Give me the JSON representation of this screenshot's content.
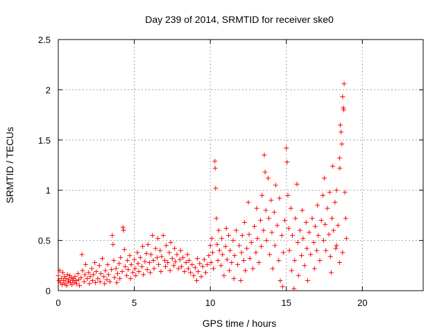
{
  "chart_data": {
    "type": "scatter",
    "title": "Day 239 of 2014, SRMTID for receiver ske0",
    "xlabel": "GPS time / hours",
    "ylabel": "SRMTID / TECUs",
    "xlim": [
      0,
      24
    ],
    "ylim": [
      0,
      2.5
    ],
    "grid": true,
    "marker": "+",
    "marker_color": "#ff0000",
    "x_ticks": [
      0,
      5,
      10,
      15,
      20
    ],
    "x_tick_labels": [
      "0",
      "5",
      "10",
      "15",
      "20"
    ],
    "y_ticks": [
      0,
      0.5,
      1,
      1.5,
      2,
      2.5
    ],
    "y_tick_labels": [
      "0",
      "0.5",
      "1",
      "1.5",
      "2",
      "2.5"
    ],
    "series": [
      {
        "name": "SRMTID",
        "points": [
          [
            0.0,
            0.15
          ],
          [
            0.05,
            0.1
          ],
          [
            0.1,
            0.2
          ],
          [
            0.15,
            0.08
          ],
          [
            0.2,
            0.12
          ],
          [
            0.25,
            0.06
          ],
          [
            0.3,
            0.18
          ],
          [
            0.35,
            0.1
          ],
          [
            0.4,
            0.14
          ],
          [
            0.45,
            0.07
          ],
          [
            0.5,
            0.12
          ],
          [
            0.55,
            0.05
          ],
          [
            0.6,
            0.16
          ],
          [
            0.65,
            0.09
          ],
          [
            0.7,
            0.11
          ],
          [
            0.75,
            0.15
          ],
          [
            0.8,
            0.08
          ],
          [
            0.85,
            0.13
          ],
          [
            0.9,
            0.06
          ],
          [
            0.95,
            0.1
          ],
          [
            1.0,
            0.12
          ],
          [
            1.05,
            0.08
          ],
          [
            1.1,
            0.14
          ],
          [
            1.15,
            0.1
          ],
          [
            1.2,
            0.07
          ],
          [
            1.3,
            0.17
          ],
          [
            1.35,
            0.11
          ],
          [
            1.4,
            0.05
          ],
          [
            1.5,
            0.13
          ],
          [
            1.55,
            0.36
          ],
          [
            1.6,
            0.2
          ],
          [
            1.7,
            0.09
          ],
          [
            1.75,
            0.16
          ],
          [
            1.8,
            0.26
          ],
          [
            1.9,
            0.12
          ],
          [
            2.0,
            0.18
          ],
          [
            2.05,
            0.07
          ],
          [
            2.1,
            0.14
          ],
          [
            2.2,
            0.22
          ],
          [
            2.25,
            0.1
          ],
          [
            2.3,
            0.16
          ],
          [
            2.4,
            0.28
          ],
          [
            2.45,
            0.08
          ],
          [
            2.5,
            0.19
          ],
          [
            2.6,
            0.12
          ],
          [
            2.7,
            0.25
          ],
          [
            2.75,
            0.09
          ],
          [
            2.8,
            0.17
          ],
          [
            2.9,
            0.32
          ],
          [
            3.0,
            0.14
          ],
          [
            3.05,
            0.07
          ],
          [
            3.1,
            0.2
          ],
          [
            3.2,
            0.11
          ],
          [
            3.25,
            0.26
          ],
          [
            3.3,
            0.16
          ],
          [
            3.4,
            0.09
          ],
          [
            3.5,
            0.21
          ],
          [
            3.55,
            0.55
          ],
          [
            3.6,
            0.46
          ],
          [
            3.65,
            0.3
          ],
          [
            3.7,
            0.13
          ],
          [
            3.8,
            0.22
          ],
          [
            3.85,
            0.08
          ],
          [
            3.9,
            0.17
          ],
          [
            4.0,
            0.27
          ],
          [
            4.05,
            0.12
          ],
          [
            4.1,
            0.33
          ],
          [
            4.2,
            0.19
          ],
          [
            4.25,
            0.63
          ],
          [
            4.3,
            0.6
          ],
          [
            4.35,
            0.41
          ],
          [
            4.4,
            0.24
          ],
          [
            4.5,
            0.15
          ],
          [
            4.55,
            0.3
          ],
          [
            4.6,
            0.21
          ],
          [
            4.7,
            0.35
          ],
          [
            4.75,
            0.12
          ],
          [
            4.8,
            0.26
          ],
          [
            4.9,
            0.18
          ],
          [
            5.0,
            0.31
          ],
          [
            5.05,
            0.22
          ],
          [
            5.1,
            0.15
          ],
          [
            5.2,
            0.38
          ],
          [
            5.25,
            0.27
          ],
          [
            5.3,
            0.19
          ],
          [
            5.4,
            0.33
          ],
          [
            5.5,
            0.24
          ],
          [
            5.55,
            0.44
          ],
          [
            5.6,
            0.16
          ],
          [
            5.7,
            0.29
          ],
          [
            5.8,
            0.37
          ],
          [
            5.85,
            0.21
          ],
          [
            5.9,
            0.46
          ],
          [
            6.0,
            0.28
          ],
          [
            6.05,
            0.18
          ],
          [
            6.1,
            0.36
          ],
          [
            6.2,
            0.55
          ],
          [
            6.25,
            0.3
          ],
          [
            6.3,
            0.22
          ],
          [
            6.4,
            0.42
          ],
          [
            6.5,
            0.33
          ],
          [
            6.55,
            0.52
          ],
          [
            6.6,
            0.26
          ],
          [
            6.7,
            0.4
          ],
          [
            6.75,
            0.19
          ],
          [
            6.8,
            0.34
          ],
          [
            6.9,
            0.55
          ],
          [
            7.0,
            0.3
          ],
          [
            7.05,
            0.24
          ],
          [
            7.1,
            0.45
          ],
          [
            7.2,
            0.28
          ],
          [
            7.3,
            0.38
          ],
          [
            7.35,
            0.2
          ],
          [
            7.4,
            0.48
          ],
          [
            7.5,
            0.32
          ],
          [
            7.6,
            0.25
          ],
          [
            7.65,
            0.42
          ],
          [
            7.7,
            0.29
          ],
          [
            7.8,
            0.36
          ],
          [
            7.9,
            0.22
          ],
          [
            8.0,
            0.31
          ],
          [
            8.05,
            0.4
          ],
          [
            8.1,
            0.24
          ],
          [
            8.2,
            0.33
          ],
          [
            8.3,
            0.19
          ],
          [
            8.4,
            0.28
          ],
          [
            8.5,
            0.36
          ],
          [
            8.55,
            0.22
          ],
          [
            8.6,
            0.3
          ],
          [
            8.7,
            0.18
          ],
          [
            8.8,
            0.26
          ],
          [
            8.9,
            0.15
          ],
          [
            9.0,
            0.23
          ],
          [
            9.1,
            0.1
          ],
          [
            9.15,
            0.32
          ],
          [
            9.2,
            0.19
          ],
          [
            9.3,
            0.27
          ],
          [
            9.4,
            0.14
          ],
          [
            9.5,
            0.24
          ],
          [
            9.6,
            0.31
          ],
          [
            9.7,
            0.18
          ],
          [
            9.8,
            0.26
          ],
          [
            9.9,
            0.35
          ],
          [
            10.0,
            0.45
          ],
          [
            10.05,
            0.28
          ],
          [
            10.1,
            0.52
          ],
          [
            10.15,
            0.38
          ],
          [
            10.2,
            0.22
          ],
          [
            10.3,
            1.29
          ],
          [
            10.32,
            1.22
          ],
          [
            10.35,
            1.02
          ],
          [
            10.4,
            0.72
          ],
          [
            10.45,
            0.46
          ],
          [
            10.5,
            0.3
          ],
          [
            10.55,
            0.6
          ],
          [
            10.6,
            0.4
          ],
          [
            10.7,
            0.25
          ],
          [
            10.75,
            0.52
          ],
          [
            10.8,
            0.36
          ],
          [
            10.9,
            0.15
          ],
          [
            11.0,
            0.44
          ],
          [
            11.05,
            0.62
          ],
          [
            11.1,
            0.31
          ],
          [
            11.2,
            0.55
          ],
          [
            11.25,
            0.2
          ],
          [
            11.3,
            0.4
          ],
          [
            11.4,
            0.28
          ],
          [
            11.5,
            0.5
          ],
          [
            11.55,
            0.12
          ],
          [
            11.6,
            0.35
          ],
          [
            11.7,
            0.6
          ],
          [
            11.8,
            0.26
          ],
          [
            11.9,
            0.45
          ],
          [
            12.0,
            0.1
          ],
          [
            12.05,
            0.38
          ],
          [
            12.1,
            0.55
          ],
          [
            12.2,
            0.3
          ],
          [
            12.25,
            0.68
          ],
          [
            12.3,
            0.2
          ],
          [
            12.4,
            0.42
          ],
          [
            12.5,
            0.88
          ],
          [
            12.55,
            0.56
          ],
          [
            12.6,
            0.32
          ],
          [
            12.7,
            0.48
          ],
          [
            12.8,
            0.22
          ],
          [
            12.9,
            0.64
          ],
          [
            13.0,
            0.38
          ],
          [
            13.05,
            0.82
          ],
          [
            13.1,
            0.52
          ],
          [
            13.2,
            0.28
          ],
          [
            13.3,
            0.7
          ],
          [
            13.35,
            0.44
          ],
          [
            13.4,
            0.95
          ],
          [
            13.5,
            0.6
          ],
          [
            13.55,
            1.35
          ],
          [
            13.6,
            1.18
          ],
          [
            13.65,
            0.8
          ],
          [
            13.7,
            0.5
          ],
          [
            13.8,
            1.12
          ],
          [
            13.85,
            0.72
          ],
          [
            13.9,
            0.36
          ],
          [
            14.0,
            0.9
          ],
          [
            14.05,
            0.58
          ],
          [
            14.1,
            0.22
          ],
          [
            14.2,
            0.78
          ],
          [
            14.25,
            0.45
          ],
          [
            14.3,
            1.05
          ],
          [
            14.4,
            0.65
          ],
          [
            14.5,
            0.3
          ],
          [
            14.55,
            0.92
          ],
          [
            14.6,
            0.1
          ],
          [
            14.7,
            0.55
          ],
          [
            14.75,
            0.04
          ],
          [
            14.8,
            0.38
          ],
          [
            14.9,
            0.7
          ],
          [
            15.0,
            1.42
          ],
          [
            15.05,
            1.28
          ],
          [
            15.1,
            0.95
          ],
          [
            15.15,
            0.62
          ],
          [
            15.2,
            0.4
          ],
          [
            15.3,
            0.82
          ],
          [
            15.35,
            0.2
          ],
          [
            15.4,
            0.55
          ],
          [
            15.5,
            0.02
          ],
          [
            15.55,
            0.3
          ],
          [
            15.6,
            0.72
          ],
          [
            15.7,
            1.06
          ],
          [
            15.75,
            0.48
          ],
          [
            15.8,
            0.15
          ],
          [
            15.9,
            0.6
          ],
          [
            16.0,
            0.35
          ],
          [
            16.05,
            0.8
          ],
          [
            16.1,
            0.52
          ],
          [
            16.2,
            0.25
          ],
          [
            16.3,
            0.68
          ],
          [
            16.35,
            0.42
          ],
          [
            16.4,
            0.1
          ],
          [
            16.5,
            0.58
          ],
          [
            16.6,
            0.36
          ],
          [
            16.7,
            0.72
          ],
          [
            16.8,
            0.48
          ],
          [
            16.85,
            0.22
          ],
          [
            16.9,
            0.64
          ],
          [
            17.0,
            0.4
          ],
          [
            17.05,
            0.85
          ],
          [
            17.1,
            0.55
          ],
          [
            17.2,
            0.3
          ],
          [
            17.3,
            0.7
          ],
          [
            17.4,
            0.95
          ],
          [
            17.45,
            0.5
          ],
          [
            17.5,
            1.12
          ],
          [
            17.55,
            0.66
          ],
          [
            17.6,
            0.4
          ],
          [
            17.7,
            0.82
          ],
          [
            17.8,
            0.56
          ],
          [
            17.85,
            0.98
          ],
          [
            17.9,
            0.34
          ],
          [
            18.0,
            0.72
          ],
          [
            18.05,
            1.24
          ],
          [
            18.1,
            0.6
          ],
          [
            18.2,
            0.88
          ],
          [
            18.25,
            0.42
          ],
          [
            18.3,
            1.0
          ],
          [
            18.4,
            0.65
          ],
          [
            18.5,
            1.32
          ],
          [
            18.52,
            1.22
          ],
          [
            18.55,
            1.65
          ],
          [
            18.6,
            1.58
          ],
          [
            18.65,
            1.46
          ],
          [
            18.7,
            1.93
          ],
          [
            18.75,
            1.82
          ],
          [
            18.78,
            1.8
          ],
          [
            18.8,
            2.06
          ],
          [
            18.85,
            0.98
          ],
          [
            18.9,
            0.72
          ],
          [
            18.95,
            0.52
          ],
          [
            18.7,
            0.38
          ],
          [
            18.5,
            0.28
          ],
          [
            18.3,
            0.45
          ],
          [
            17.95,
            0.18
          ]
        ]
      }
    ]
  }
}
